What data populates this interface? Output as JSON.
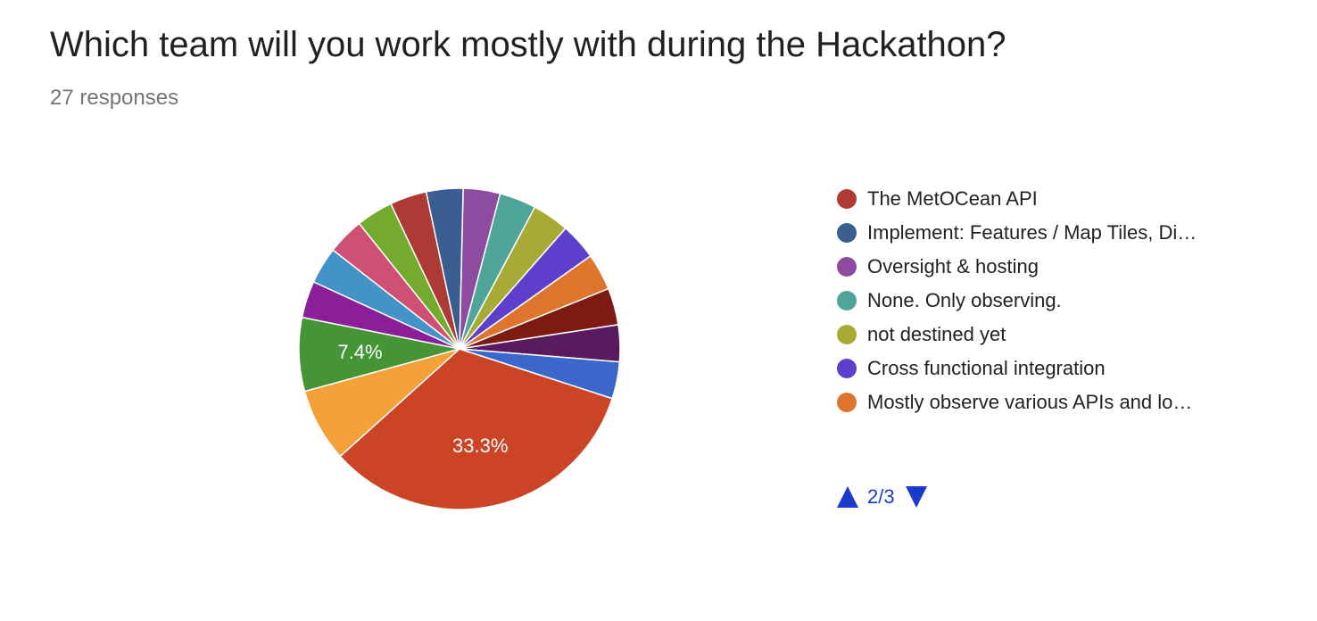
{
  "header": {
    "title": "Which team will you work mostly with during the Hackathon?",
    "responses": "27 responses"
  },
  "chart_data": {
    "type": "pie",
    "total_responses": 27,
    "slices": [
      {
        "value": 33.3,
        "color": "#cc4426",
        "label": "33.3%"
      },
      {
        "value": 7.4,
        "color": "#f4a13b"
      },
      {
        "value": 7.4,
        "color": "#459435",
        "label": "7.4%"
      },
      {
        "value": 3.7,
        "color": "#8a1f99"
      },
      {
        "value": 3.7,
        "color": "#4393c6"
      },
      {
        "value": 3.7,
        "color": "#d04f74"
      },
      {
        "value": 3.7,
        "color": "#74ab2f"
      },
      {
        "value": 3.7,
        "color": "#ad3a34"
      },
      {
        "value": 3.7,
        "color": "#3a5e8f"
      },
      {
        "value": 3.7,
        "color": "#8d4ca0"
      },
      {
        "value": 3.7,
        "color": "#4fa59a"
      },
      {
        "value": 3.7,
        "color": "#a8aa36"
      },
      {
        "value": 3.7,
        "color": "#5d3fcb"
      },
      {
        "value": 3.7,
        "color": "#dd752d"
      },
      {
        "value": 3.7,
        "color": "#7d1b12"
      },
      {
        "value": 3.7,
        "color": "#5a1a5e"
      },
      {
        "value": 3.7,
        "color": "#3b67cc"
      }
    ]
  },
  "legend": {
    "items": [
      {
        "label": "The MetOCean API",
        "color": "#ad3a34"
      },
      {
        "label": "Implement: Features / Map Tiles, Di…",
        "color": "#3a5e8f"
      },
      {
        "label": "Oversight & hosting",
        "color": "#8d4ca0"
      },
      {
        "label": "None. Only observing.",
        "color": "#4fa59a"
      },
      {
        "label": "not destined yet",
        "color": "#a8aa36"
      },
      {
        "label": "Cross functional integration",
        "color": "#5d3fcb"
      },
      {
        "label": "Mostly observe various APIs and lo…",
        "color": "#dd752d"
      }
    ],
    "pager": {
      "text": "2/3",
      "up_icon": "triangle-up-icon",
      "down_icon": "triangle-down-icon"
    }
  }
}
